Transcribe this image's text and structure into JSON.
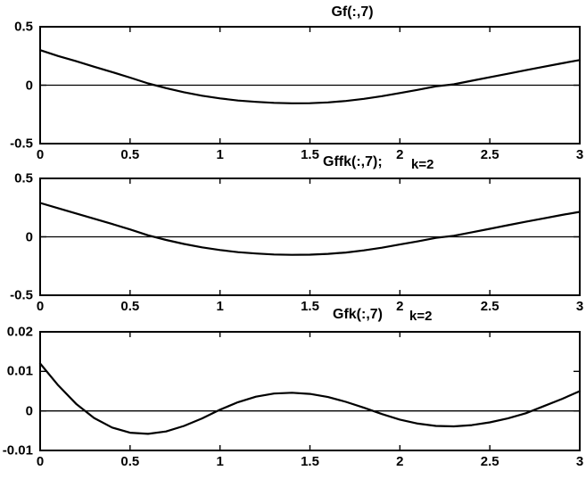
{
  "figure": {
    "background": "#ffffff",
    "line_color": "#000000",
    "text_color": "#000000"
  },
  "chart_data": [
    {
      "type": "line",
      "name": "gf-chart",
      "title": "Gf(:,7)",
      "annotation": "",
      "xlim": [
        0,
        3
      ],
      "ylim": [
        -0.5,
        0.5
      ],
      "xtick_values": [
        0,
        0.5,
        1,
        1.5,
        2,
        2.5,
        3
      ],
      "xticks": [
        "0",
        "0.5",
        "1",
        "1.5",
        "2",
        "2.5",
        "3"
      ],
      "ytick_values": [
        0.5,
        0,
        -0.5
      ],
      "yticks": [
        "0.5",
        "0",
        "-0.5"
      ],
      "grid": false,
      "zero_line": true,
      "x": [
        0,
        0.1,
        0.2,
        0.3,
        0.4,
        0.5,
        0.6,
        0.7,
        0.8,
        0.9,
        1.0,
        1.1,
        1.2,
        1.3,
        1.4,
        1.5,
        1.6,
        1.7,
        1.8,
        1.9,
        2.0,
        2.1,
        2.2,
        2.3,
        2.4,
        2.5,
        2.6,
        2.7,
        2.8,
        2.9,
        3.0
      ],
      "y": [
        0.3,
        0.25,
        0.205,
        0.158,
        0.112,
        0.065,
        0.015,
        -0.025,
        -0.06,
        -0.09,
        -0.113,
        -0.131,
        -0.143,
        -0.151,
        -0.155,
        -0.154,
        -0.147,
        -0.135,
        -0.117,
        -0.094,
        -0.067,
        -0.04,
        -0.01,
        0.008,
        0.038,
        0.068,
        0.098,
        0.128,
        0.158,
        0.187,
        0.215
      ]
    },
    {
      "type": "line",
      "name": "gffk-chart",
      "title": "Gffk(:,7);",
      "annotation": "k=2",
      "xlim": [
        0,
        3
      ],
      "ylim": [
        -0.5,
        0.5
      ],
      "xtick_values": [
        0,
        0.5,
        1,
        1.5,
        2,
        2.5,
        3
      ],
      "xticks": [
        "0",
        "0.5",
        "1",
        "1.5",
        "2",
        "2.5",
        "3"
      ],
      "ytick_values": [
        0.5,
        0,
        -0.5
      ],
      "yticks": [
        "0.5",
        "0",
        "-0.5"
      ],
      "grid": false,
      "zero_line": true,
      "x": [
        0,
        0.1,
        0.2,
        0.3,
        0.4,
        0.5,
        0.6,
        0.7,
        0.8,
        0.9,
        1.0,
        1.1,
        1.2,
        1.3,
        1.4,
        1.5,
        1.6,
        1.7,
        1.8,
        1.9,
        2.0,
        2.1,
        2.2,
        2.3,
        2.4,
        2.5,
        2.6,
        2.7,
        2.8,
        2.9,
        3.0
      ],
      "y": [
        0.29,
        0.245,
        0.2,
        0.155,
        0.11,
        0.063,
        0.013,
        -0.027,
        -0.061,
        -0.09,
        -0.113,
        -0.131,
        -0.143,
        -0.151,
        -0.154,
        -0.153,
        -0.146,
        -0.134,
        -0.116,
        -0.093,
        -0.066,
        -0.039,
        -0.009,
        0.009,
        0.039,
        0.069,
        0.099,
        0.129,
        0.158,
        0.187,
        0.214
      ]
    },
    {
      "type": "line",
      "name": "gfk-chart",
      "title": "Gfk(:,7)",
      "annotation": "k=2",
      "xlim": [
        0,
        3
      ],
      "ylim": [
        -0.01,
        0.02
      ],
      "xtick_values": [
        0,
        0.5,
        1,
        1.5,
        2,
        2.5,
        3
      ],
      "xticks": [
        "0",
        "0.5",
        "1",
        "1.5",
        "2",
        "2.5",
        "3"
      ],
      "ytick_values": [
        0.02,
        0.01,
        0,
        -0.01
      ],
      "yticks": [
        "0.02",
        "0.01",
        "0",
        "-0.01"
      ],
      "grid": false,
      "zero_line": true,
      "x": [
        0,
        0.1,
        0.2,
        0.3,
        0.4,
        0.5,
        0.6,
        0.7,
        0.8,
        0.9,
        1.0,
        1.1,
        1.2,
        1.3,
        1.4,
        1.5,
        1.6,
        1.7,
        1.8,
        1.9,
        2.0,
        2.1,
        2.2,
        2.3,
        2.4,
        2.5,
        2.6,
        2.7,
        2.8,
        2.9,
        3.0
      ],
      "y": [
        0.012,
        0.0065,
        0.0018,
        -0.0018,
        -0.0042,
        -0.0055,
        -0.0058,
        -0.0052,
        -0.0038,
        -0.0019,
        0.0003,
        0.0022,
        0.0036,
        0.0044,
        0.0046,
        0.0043,
        0.0035,
        0.0023,
        0.0008,
        -0.0008,
        -0.0022,
        -0.0032,
        -0.0038,
        -0.0039,
        -0.0036,
        -0.0029,
        -0.0019,
        -0.0006,
        0.0012,
        0.003,
        0.005
      ]
    }
  ]
}
